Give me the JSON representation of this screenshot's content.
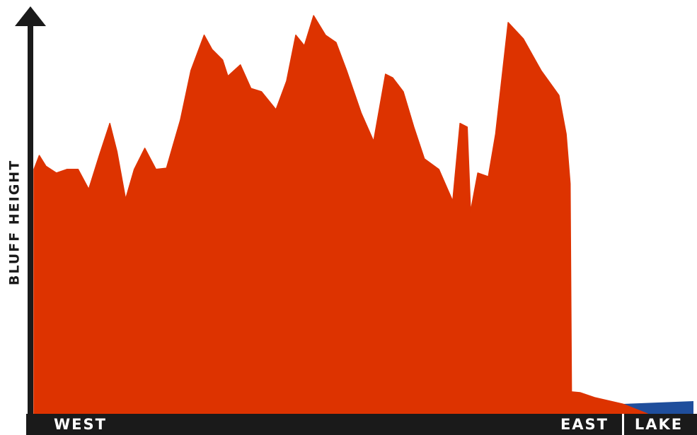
{
  "chart_data": {
    "type": "area",
    "y_label": "BLUFF HEIGHT",
    "x_start_label": "WEST",
    "x_end_label": "EAST",
    "lake_label": "LAKE",
    "color": "#dd3300",
    "lake_color": "#1f4e9c",
    "xlim": [
      0,
      100
    ],
    "ylim": [
      0,
      100
    ],
    "x": [
      0,
      0.8,
      1.8,
      3.4,
      5.0,
      6.7,
      8.3,
      9.9,
      11.5,
      12.6,
      13.9,
      15.2,
      16.8,
      18.5,
      20.1,
      21.1,
      22.2,
      23.8,
      25.8,
      27.0,
      28.6,
      29.4,
      31.3,
      32.9,
      34.5,
      36.7,
      38.3,
      39.7,
      41.0,
      42.4,
      44.2,
      45.8,
      47.4,
      49.6,
      51.5,
      53.3,
      54.4,
      56.0,
      57.6,
      59.2,
      61.4,
      63.5,
      64.6,
      65.7,
      66.2,
      67.3,
      68.9,
      70.0,
      71.9,
      74.2,
      76.9,
      79.6,
      80.7,
      81.3,
      81.5,
      82.8,
      85.0,
      89.3,
      93.0
    ],
    "values": [
      60.1,
      63.5,
      60.9,
      59.2,
      60.1,
      60.1,
      55.2,
      63.5,
      71.4,
      64.4,
      52.8,
      60.1,
      65.3,
      60.1,
      60.4,
      66.1,
      72.2,
      84.4,
      93.1,
      89.6,
      87.0,
      83.0,
      85.8,
      80.0,
      79.2,
      74.8,
      81.8,
      93.1,
      90.5,
      97.9,
      93.1,
      91.3,
      84.4,
      74.0,
      67.0,
      83.5,
      82.6,
      79.2,
      70.5,
      62.7,
      60.1,
      52.3,
      71.4,
      70.5,
      49.7,
      59.2,
      58.3,
      68.8,
      96.2,
      92.2,
      84.4,
      78.3,
      68.8,
      56.6,
      5.4,
      5.2,
      4.0,
      2.4,
      0
    ]
  }
}
